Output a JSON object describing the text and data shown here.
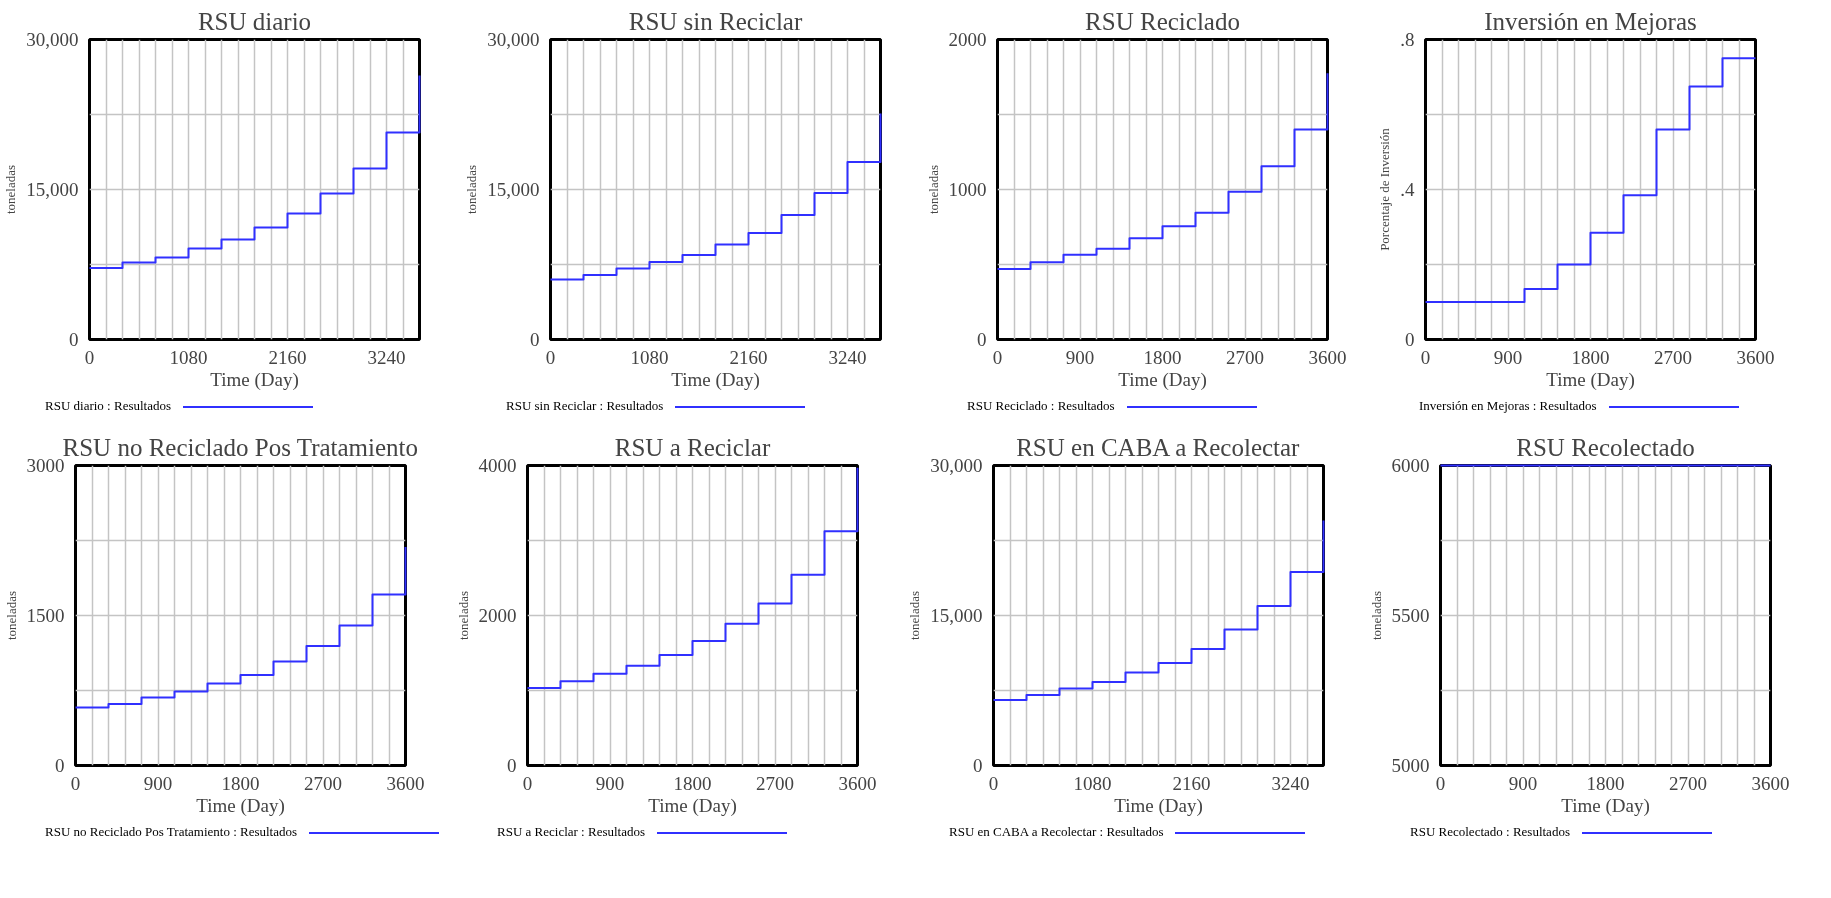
{
  "chart_data": [
    {
      "type": "step",
      "title": "RSU diario",
      "xlabel": "Time (Day)",
      "ylabel": "toneladas",
      "grid": true,
      "legend": "bottom",
      "xlim": [
        0,
        3600
      ],
      "ylim": [
        0,
        30000
      ],
      "xticks": [
        0,
        {
          "value": 180,
          "label": null
        },
        {
          "value": 360,
          "label": null
        },
        {
          "value": 540,
          "label": null
        },
        {
          "value": 720,
          "label": null
        },
        {
          "value": 900,
          "label": null
        },
        1080,
        {
          "value": 1260,
          "label": null
        },
        {
          "value": 1440,
          "label": null
        },
        {
          "value": 1620,
          "label": null
        },
        {
          "value": 1800,
          "label": null
        },
        {
          "value": 1980,
          "label": null
        },
        2160,
        {
          "value": 2340,
          "label": null
        },
        {
          "value": 2520,
          "label": null
        },
        {
          "value": 2700,
          "label": null
        },
        {
          "value": 2880,
          "label": null
        },
        {
          "value": 3060,
          "label": null
        },
        3240,
        {
          "value": 3420,
          "label": null
        },
        {
          "value": 3600,
          "label": null
        }
      ],
      "yticks": [
        0,
        {
          "value": 7500,
          "label": null
        },
        {
          "value": 15000,
          "label": "15,000"
        },
        {
          "value": 22500,
          "label": null
        },
        {
          "value": 30000,
          "label": "30,000"
        }
      ],
      "x": [
        0,
        360,
        720,
        1080,
        1440,
        1800,
        2160,
        2520,
        2880,
        3240,
        3600
      ],
      "series": [
        {
          "name": "RSU diario : Resultados",
          "color": "#3030ff",
          "values": [
            7150,
            7700,
            8200,
            9100,
            10000,
            11200,
            12600,
            14600,
            17100,
            20700,
            26400
          ]
        }
      ]
    },
    {
      "type": "step",
      "title": "RSU sin Reciclar",
      "xlabel": "Time (Day)",
      "ylabel": "toneladas",
      "grid": true,
      "legend": "bottom",
      "xlim": [
        0,
        3600
      ],
      "ylim": [
        0,
        30000
      ],
      "xticks": [
        0,
        {
          "value": 180,
          "label": null
        },
        {
          "value": 360,
          "label": null
        },
        {
          "value": 540,
          "label": null
        },
        {
          "value": 720,
          "label": null
        },
        {
          "value": 900,
          "label": null
        },
        1080,
        {
          "value": 1260,
          "label": null
        },
        {
          "value": 1440,
          "label": null
        },
        {
          "value": 1620,
          "label": null
        },
        {
          "value": 1800,
          "label": null
        },
        {
          "value": 1980,
          "label": null
        },
        2160,
        {
          "value": 2340,
          "label": null
        },
        {
          "value": 2520,
          "label": null
        },
        {
          "value": 2700,
          "label": null
        },
        {
          "value": 2880,
          "label": null
        },
        {
          "value": 3060,
          "label": null
        },
        3240,
        {
          "value": 3420,
          "label": null
        },
        {
          "value": 3600,
          "label": null
        }
      ],
      "yticks": [
        0,
        {
          "value": 7500,
          "label": null
        },
        {
          "value": 15000,
          "label": "15,000"
        },
        {
          "value": 22500,
          "label": null
        },
        {
          "value": 30000,
          "label": "30,000"
        }
      ],
      "x": [
        0,
        360,
        720,
        1080,
        1440,
        1800,
        2160,
        2520,
        2880,
        3240,
        3600
      ],
      "series": [
        {
          "name": "RSU sin Reciclar : Resultados",
          "color": "#3030ff",
          "values": [
            6000,
            6450,
            7100,
            7750,
            8450,
            9500,
            10650,
            12450,
            14650,
            17750,
            22600
          ]
        }
      ]
    },
    {
      "type": "step",
      "title": "RSU Reciclado",
      "xlabel": "Time (Day)",
      "ylabel": "toneladas",
      "grid": true,
      "legend": "bottom",
      "xlim": [
        0,
        3600
      ],
      "ylim": [
        0,
        2000
      ],
      "xticks": [
        0,
        {
          "value": 180,
          "label": null
        },
        {
          "value": 360,
          "label": null
        },
        {
          "value": 540,
          "label": null
        },
        {
          "value": 720,
          "label": null
        },
        900,
        {
          "value": 1080,
          "label": null
        },
        {
          "value": 1260,
          "label": null
        },
        {
          "value": 1440,
          "label": null
        },
        {
          "value": 1620,
          "label": null
        },
        1800,
        {
          "value": 1980,
          "label": null
        },
        {
          "value": 2160,
          "label": null
        },
        {
          "value": 2340,
          "label": null
        },
        {
          "value": 2520,
          "label": null
        },
        2700,
        {
          "value": 2880,
          "label": null
        },
        {
          "value": 3060,
          "label": null
        },
        {
          "value": 3240,
          "label": null
        },
        {
          "value": 3420,
          "label": null
        },
        3600
      ],
      "yticks": [
        0,
        {
          "value": 500,
          "label": null
        },
        1000,
        {
          "value": 1500,
          "label": null
        },
        2000
      ],
      "x": [
        0,
        360,
        720,
        1080,
        1440,
        1800,
        2160,
        2520,
        2880,
        3240,
        3600
      ],
      "series": [
        {
          "name": "RSU Reciclado : Resultados",
          "color": "#3030ff",
          "values": [
            470,
            515,
            565,
            605,
            675,
            755,
            845,
            985,
            1155,
            1400,
            1775
          ]
        }
      ]
    },
    {
      "type": "step",
      "title": "Inversión en Mejoras",
      "xlabel": "Time (Day)",
      "ylabel": "Porcentaje de Inversión",
      "grid": true,
      "legend": "bottom",
      "xlim": [
        0,
        3600
      ],
      "ylim": [
        0,
        0.8
      ],
      "xticks": [
        0,
        {
          "value": 180,
          "label": null
        },
        {
          "value": 360,
          "label": null
        },
        {
          "value": 540,
          "label": null
        },
        {
          "value": 720,
          "label": null
        },
        900,
        {
          "value": 1080,
          "label": null
        },
        {
          "value": 1260,
          "label": null
        },
        {
          "value": 1440,
          "label": null
        },
        {
          "value": 1620,
          "label": null
        },
        1800,
        {
          "value": 1980,
          "label": null
        },
        {
          "value": 2160,
          "label": null
        },
        {
          "value": 2340,
          "label": null
        },
        {
          "value": 2520,
          "label": null
        },
        2700,
        {
          "value": 2880,
          "label": null
        },
        {
          "value": 3060,
          "label": null
        },
        {
          "value": 3240,
          "label": null
        },
        {
          "value": 3420,
          "label": null
        },
        3600
      ],
      "yticks": [
        0,
        {
          "value": 0.2,
          "label": null
        },
        {
          "value": 0.4,
          "label": ".4"
        },
        {
          "value": 0.6,
          "label": null
        },
        {
          "value": 0.8,
          "label": ".8"
        }
      ],
      "x": [
        0,
        360,
        720,
        1080,
        1440,
        1800,
        2160,
        2520,
        2880,
        3240,
        3600
      ],
      "series": [
        {
          "name": "Inversión en Mejoras : Resultados",
          "color": "#3030ff",
          "values": [
            0.1,
            0.1,
            0.1,
            0.135,
            0.2,
            0.285,
            0.385,
            0.56,
            0.675,
            0.75,
            0.75
          ]
        }
      ]
    },
    {
      "type": "step",
      "title": "RSU no Reciclado Pos Tratamiento",
      "xlabel": "Time (Day)",
      "ylabel": "toneladas",
      "grid": true,
      "legend": "bottom",
      "xlim": [
        0,
        3600
      ],
      "ylim": [
        0,
        3000
      ],
      "xticks": [
        0,
        {
          "value": 180,
          "label": null
        },
        {
          "value": 360,
          "label": null
        },
        {
          "value": 540,
          "label": null
        },
        {
          "value": 720,
          "label": null
        },
        900,
        {
          "value": 1080,
          "label": null
        },
        {
          "value": 1260,
          "label": null
        },
        {
          "value": 1440,
          "label": null
        },
        {
          "value": 1620,
          "label": null
        },
        1800,
        {
          "value": 1980,
          "label": null
        },
        {
          "value": 2160,
          "label": null
        },
        {
          "value": 2340,
          "label": null
        },
        {
          "value": 2520,
          "label": null
        },
        2700,
        {
          "value": 2880,
          "label": null
        },
        {
          "value": 3060,
          "label": null
        },
        {
          "value": 3240,
          "label": null
        },
        {
          "value": 3420,
          "label": null
        },
        3600
      ],
      "yticks": [
        0,
        {
          "value": 750,
          "label": null
        },
        1500,
        {
          "value": 2250,
          "label": null
        },
        3000
      ],
      "x": [
        0,
        360,
        720,
        1080,
        1440,
        1800,
        2160,
        2520,
        2880,
        3240,
        3600
      ],
      "series": [
        {
          "name": "RSU no Reciclado Pos Tratamiento : Resultados",
          "color": "#3030ff",
          "values": [
            580,
            615,
            680,
            740,
            820,
            905,
            1040,
            1195,
            1400,
            1710,
            2185
          ]
        }
      ]
    },
    {
      "type": "step",
      "title": "RSU a Reciclar",
      "xlabel": "Time (Day)",
      "ylabel": "toneladas",
      "grid": true,
      "legend": "bottom",
      "xlim": [
        0,
        3600
      ],
      "ylim": [
        0,
        4000
      ],
      "xticks": [
        0,
        {
          "value": 180,
          "label": null
        },
        {
          "value": 360,
          "label": null
        },
        {
          "value": 540,
          "label": null
        },
        {
          "value": 720,
          "label": null
        },
        900,
        {
          "value": 1080,
          "label": null
        },
        {
          "value": 1260,
          "label": null
        },
        {
          "value": 1440,
          "label": null
        },
        {
          "value": 1620,
          "label": null
        },
        1800,
        {
          "value": 1980,
          "label": null
        },
        {
          "value": 2160,
          "label": null
        },
        {
          "value": 2340,
          "label": null
        },
        {
          "value": 2520,
          "label": null
        },
        2700,
        {
          "value": 2880,
          "label": null
        },
        {
          "value": 3060,
          "label": null
        },
        {
          "value": 3240,
          "label": null
        },
        {
          "value": 3420,
          "label": null
        },
        3600
      ],
      "yticks": [
        0,
        {
          "value": 1000,
          "label": null
        },
        2000,
        {
          "value": 3000,
          "label": null
        },
        4000
      ],
      "x": [
        0,
        360,
        720,
        1080,
        1440,
        1800,
        2160,
        2520,
        2880,
        3240,
        3600
      ],
      "series": [
        {
          "name": "RSU a Reciclar : Resultados",
          "color": "#3030ff",
          "values": [
            1035,
            1125,
            1225,
            1330,
            1475,
            1660,
            1890,
            2160,
            2545,
            3125,
            3970
          ]
        }
      ]
    },
    {
      "type": "step",
      "title": "RSU en CABA a Recolectar",
      "xlabel": "Time (Day)",
      "ylabel": "toneladas",
      "grid": true,
      "legend": "bottom",
      "xlim": [
        0,
        3600
      ],
      "ylim": [
        0,
        30000
      ],
      "xticks": [
        0,
        {
          "value": 180,
          "label": null
        },
        {
          "value": 360,
          "label": null
        },
        {
          "value": 540,
          "label": null
        },
        {
          "value": 720,
          "label": null
        },
        {
          "value": 900,
          "label": null
        },
        1080,
        {
          "value": 1260,
          "label": null
        },
        {
          "value": 1440,
          "label": null
        },
        {
          "value": 1620,
          "label": null
        },
        {
          "value": 1800,
          "label": null
        },
        {
          "value": 1980,
          "label": null
        },
        2160,
        {
          "value": 2340,
          "label": null
        },
        {
          "value": 2520,
          "label": null
        },
        {
          "value": 2700,
          "label": null
        },
        {
          "value": 2880,
          "label": null
        },
        {
          "value": 3060,
          "label": null
        },
        3240,
        {
          "value": 3420,
          "label": null
        },
        {
          "value": 3600,
          "label": null
        }
      ],
      "yticks": [
        0,
        {
          "value": 7500,
          "label": null
        },
        {
          "value": 15000,
          "label": "15,000"
        },
        {
          "value": 22500,
          "label": null
        },
        {
          "value": 30000,
          "label": "30,000"
        }
      ],
      "x": [
        0,
        360,
        720,
        1080,
        1440,
        1800,
        2160,
        2520,
        2880,
        3240,
        3600
      ],
      "series": [
        {
          "name": "RSU en CABA a Recolectar : Resultados",
          "color": "#3030ff",
          "values": [
            6550,
            7050,
            7700,
            8350,
            9300,
            10250,
            11650,
            13600,
            15950,
            19350,
            24500
          ]
        }
      ]
    },
    {
      "type": "step",
      "title": "RSU Recolectado",
      "xlabel": "Time (Day)",
      "ylabel": "toneladas",
      "grid": true,
      "legend": "bottom",
      "xlim": [
        0,
        3600
      ],
      "ylim": [
        5000,
        6000
      ],
      "xticks": [
        0,
        {
          "value": 180,
          "label": null
        },
        {
          "value": 360,
          "label": null
        },
        {
          "value": 540,
          "label": null
        },
        {
          "value": 720,
          "label": null
        },
        900,
        {
          "value": 1080,
          "label": null
        },
        {
          "value": 1260,
          "label": null
        },
        {
          "value": 1440,
          "label": null
        },
        {
          "value": 1620,
          "label": null
        },
        1800,
        {
          "value": 1980,
          "label": null
        },
        {
          "value": 2160,
          "label": null
        },
        {
          "value": 2340,
          "label": null
        },
        {
          "value": 2520,
          "label": null
        },
        2700,
        {
          "value": 2880,
          "label": null
        },
        {
          "value": 3060,
          "label": null
        },
        {
          "value": 3240,
          "label": null
        },
        {
          "value": 3420,
          "label": null
        },
        3600
      ],
      "yticks": [
        5000,
        {
          "value": 5250,
          "label": null
        },
        5500,
        {
          "value": 5750,
          "label": null
        },
        6000
      ],
      "x": [
        0,
        360,
        720,
        1080,
        1440,
        1800,
        2160,
        2520,
        2880,
        3240,
        3600
      ],
      "series": [
        {
          "name": "RSU Recolectado : Resultados",
          "color": "#3030ff",
          "values": [
            6000,
            6000,
            6000,
            6000,
            6000,
            6000,
            6000,
            6000,
            6000,
            6000,
            6000
          ]
        }
      ]
    }
  ]
}
